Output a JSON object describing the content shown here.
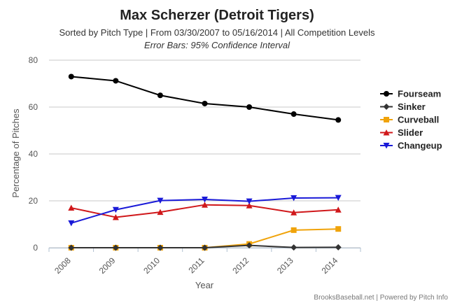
{
  "chart_data": {
    "type": "line",
    "title": "Max Scherzer (Detroit Tigers)",
    "subtitle": "Sorted by Pitch Type | From 03/30/2007 to 05/16/2014 | All Competition Levels",
    "subtitle2": "Error Bars: 95% Confidence Interval",
    "xlabel": "Year",
    "ylabel": "Percentage of Pitches",
    "categories": [
      "2008",
      "2009",
      "2010",
      "2011",
      "2012",
      "2013",
      "2014"
    ],
    "ylim": [
      0,
      80
    ],
    "yticks": [
      "0",
      "20",
      "40",
      "60",
      "80"
    ],
    "grid": true,
    "legend_position": "right",
    "series": [
      {
        "name": "Fourseam",
        "color": "#000000",
        "marker": "circle",
        "values": [
          73.0,
          71.2,
          65.0,
          61.5,
          60.0,
          57.0,
          54.5
        ]
      },
      {
        "name": "Sinker",
        "color": "#333333",
        "marker": "diamond",
        "values": [
          0,
          0,
          0,
          0,
          1.0,
          0.1,
          0.2
        ]
      },
      {
        "name": "Curveball",
        "color": "#f0a30a",
        "marker": "square",
        "values": [
          0,
          0,
          0,
          0,
          1.6,
          7.5,
          8.0
        ]
      },
      {
        "name": "Slider",
        "color": "#d0181b",
        "marker": "triangle",
        "values": [
          17.0,
          13.0,
          15.2,
          18.3,
          18.0,
          15.0,
          16.2
        ]
      },
      {
        "name": "Changeup",
        "color": "#1a1ad8",
        "marker": "triangle-down",
        "values": [
          10.5,
          16.2,
          20.1,
          20.6,
          19.8,
          21.2,
          21.3
        ]
      }
    ],
    "credits": "BrooksBaseball.net | Powered by Pitch Info"
  }
}
